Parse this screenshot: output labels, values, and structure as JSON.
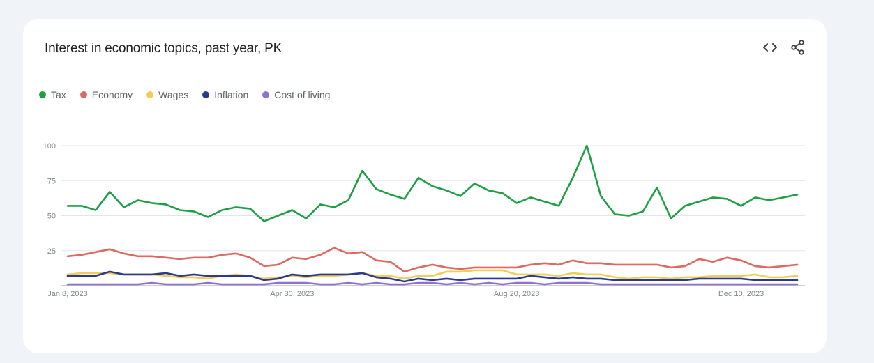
{
  "header": {
    "title": "Interest in economic topics, past year, PK"
  },
  "icons": {
    "embed": "code-icon",
    "share": "share-icon"
  },
  "chart_data": {
    "type": "line",
    "title": "Interest in economic topics, past year, PK",
    "xlabel": "",
    "ylabel": "",
    "ylim": [
      0,
      100
    ],
    "yticks": [
      25,
      50,
      75,
      100
    ],
    "xticks": [
      {
        "index": 0,
        "label": "Jan 8, 2023"
      },
      {
        "index": 16,
        "label": "Apr 30, 2023"
      },
      {
        "index": 32,
        "label": "Aug 20, 2023"
      },
      {
        "index": 48,
        "label": "Dec 10, 2023"
      }
    ],
    "legend_position": "top-left",
    "grid": true,
    "series": [
      {
        "name": "Tax",
        "color": "#1e9e45",
        "values": [
          57,
          57,
          54,
          67,
          56,
          61,
          59,
          58,
          54,
          53,
          49,
          54,
          56,
          55,
          46,
          50,
          54,
          48,
          58,
          56,
          61,
          82,
          69,
          65,
          62,
          77,
          71,
          68,
          64,
          73,
          68,
          66,
          59,
          63,
          60,
          57,
          77,
          100,
          64,
          51,
          50,
          53,
          70,
          48,
          57,
          60,
          63,
          62,
          57,
          63,
          61,
          63,
          65
        ]
      },
      {
        "name": "Economy",
        "color": "#db6b62",
        "values": [
          21,
          22,
          24,
          26,
          23,
          21,
          21,
          20,
          19,
          20,
          20,
          22,
          23,
          20,
          14,
          15,
          20,
          19,
          22,
          27,
          23,
          24,
          18,
          17,
          10,
          13,
          15,
          13,
          12,
          13,
          13,
          13,
          13,
          15,
          16,
          15,
          18,
          16,
          16,
          15,
          15,
          15,
          15,
          13,
          14,
          19,
          17,
          20,
          18,
          14,
          13,
          14,
          15
        ]
      },
      {
        "name": "Wages",
        "color": "#f2cd55",
        "values": [
          8,
          9,
          9,
          9,
          8,
          8,
          8,
          7,
          6,
          6,
          5,
          7,
          8,
          7,
          5,
          6,
          7,
          6,
          7,
          7,
          8,
          9,
          7,
          7,
          5,
          7,
          7,
          10,
          10,
          11,
          11,
          11,
          8,
          8,
          8,
          7,
          9,
          8,
          8,
          6,
          5,
          6,
          6,
          5,
          6,
          6,
          7,
          7,
          7,
          8,
          6,
          6,
          7
        ]
      },
      {
        "name": "Inflation",
        "color": "#2b3a8c",
        "values": [
          7,
          7,
          7,
          10,
          8,
          8,
          8,
          9,
          7,
          8,
          7,
          7,
          7,
          7,
          4,
          5,
          8,
          7,
          8,
          8,
          8,
          9,
          6,
          5,
          3,
          5,
          4,
          5,
          4,
          5,
          5,
          5,
          5,
          7,
          6,
          5,
          6,
          5,
          5,
          4,
          4,
          4,
          4,
          4,
          4,
          5,
          5,
          5,
          5,
          4,
          4,
          4,
          4
        ]
      },
      {
        "name": "Cost of living",
        "color": "#8e6fd4",
        "values": [
          1,
          1,
          1,
          1,
          1,
          1,
          2,
          1,
          1,
          1,
          2,
          1,
          1,
          1,
          1,
          2,
          2,
          2,
          1,
          1,
          2,
          1,
          2,
          1,
          1,
          2,
          2,
          1,
          2,
          1,
          2,
          1,
          2,
          2,
          1,
          2,
          2,
          2,
          1,
          1,
          1,
          1,
          1,
          1,
          1,
          1,
          1,
          1,
          1,
          1,
          1,
          1,
          1
        ]
      }
    ]
  }
}
